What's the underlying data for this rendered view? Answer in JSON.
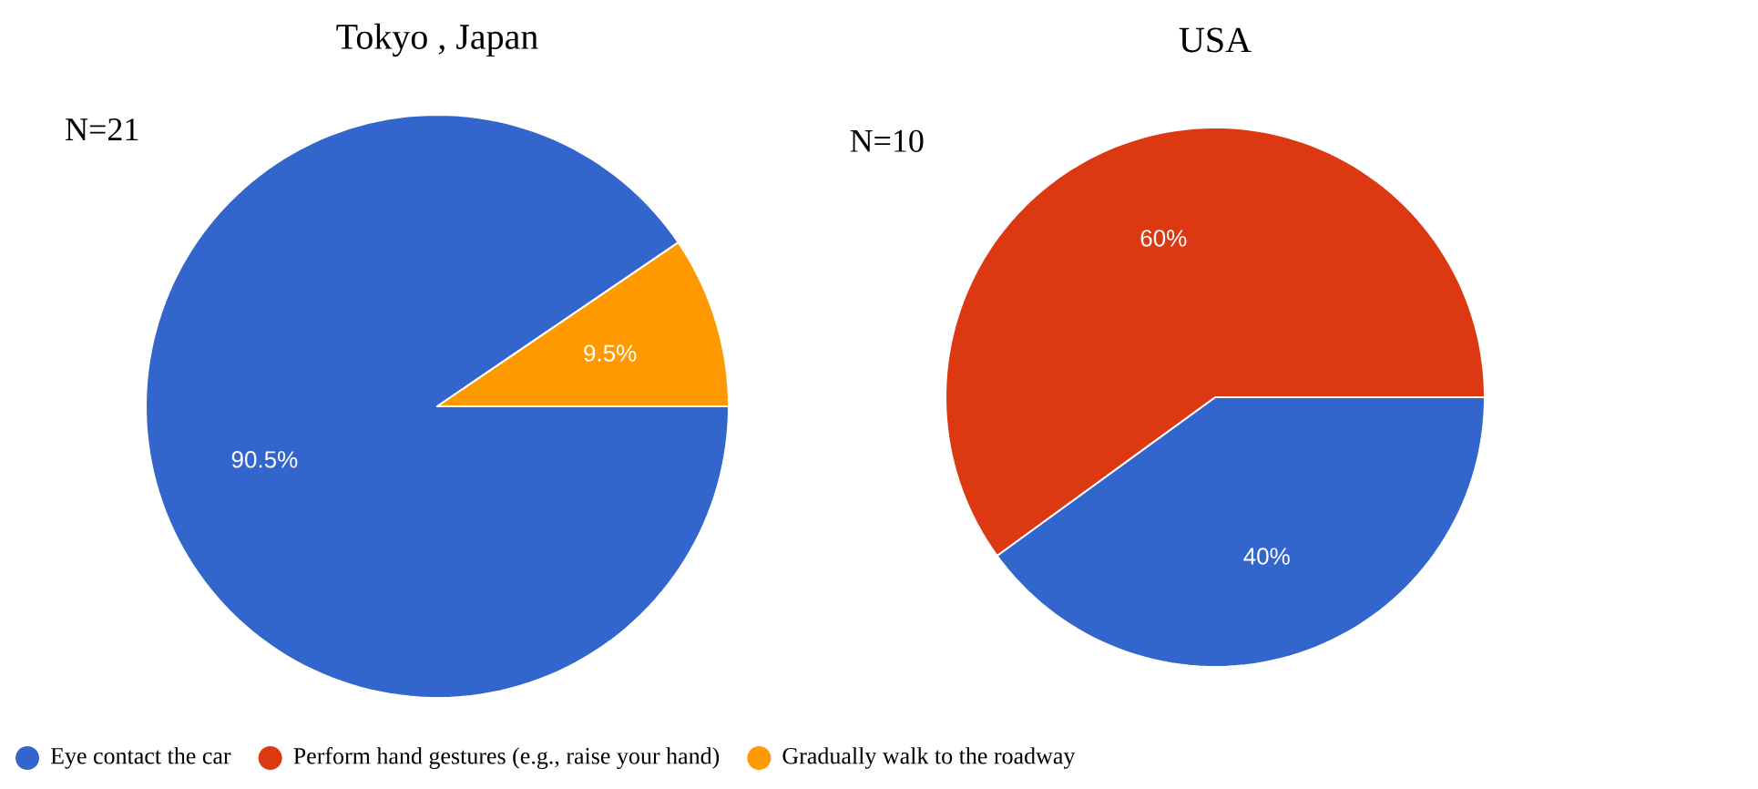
{
  "chart_data": [
    {
      "type": "pie",
      "title": "Tokyo , Japan",
      "annotations": [
        "N=21"
      ],
      "categories": [
        "Eye contact the car",
        "Perform hand gestures (e.g., raise your hand)",
        "Gradually walk to the roadway"
      ],
      "values": [
        90.5,
        0,
        9.5
      ],
      "value_labels": [
        "90.5%",
        null,
        "9.5%"
      ],
      "colors": [
        "#3366cc",
        "#dc3912",
        "#ff9900"
      ],
      "legend": "bottom"
    },
    {
      "type": "pie",
      "title": "USA",
      "annotations": [
        "N=10"
      ],
      "categories": [
        null,
        null,
        null
      ],
      "values": [
        40,
        60,
        0
      ],
      "value_labels": [
        "40%",
        "60%",
        null
      ],
      "colors": [
        "#3366cc",
        "#dc3912",
        "#ff9900"
      ]
    }
  ]
}
